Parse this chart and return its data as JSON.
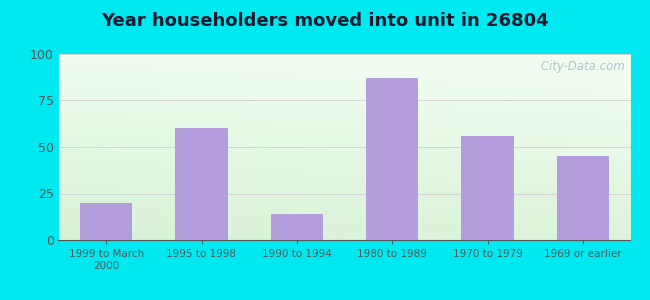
{
  "title": "Year householders moved into unit in 26804",
  "categories": [
    "1999 to March\n2000",
    "1995 to 1998",
    "1990 to 1994",
    "1980 to 1989",
    "1970 to 1979",
    "1969 or earlier"
  ],
  "values": [
    20,
    60,
    14,
    87,
    56,
    45
  ],
  "bar_color": "#b39ddb",
  "ylim": [
    0,
    100
  ],
  "yticks": [
    0,
    25,
    50,
    75,
    100
  ],
  "background_outer": "#00e8f0",
  "grid_color": "#cccccc",
  "title_fontsize": 13,
  "title_color": "#1a1a2e",
  "watermark_text": " City-Data.com",
  "watermark_color": "#aabbcc",
  "tick_color": "#555555",
  "gradient_top": "#f0f8f0",
  "gradient_bottom": "#c8e6c9"
}
